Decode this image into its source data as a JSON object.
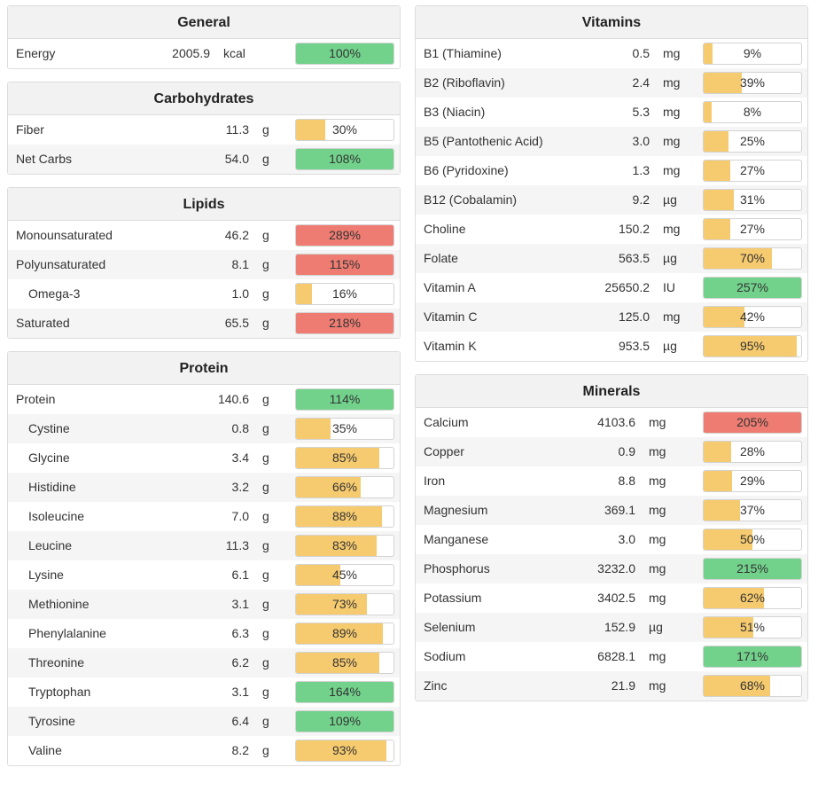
{
  "colors": {
    "green": "#72d28c",
    "yellow": "#f6ca6e",
    "red": "#ee7c72"
  },
  "left": [
    {
      "title": "General",
      "cls": "panel-general",
      "rows": [
        {
          "name": "Energy",
          "amount": "2005.9",
          "unit": "kcal",
          "pct": 100,
          "label": "100%",
          "color": "green",
          "indent": false
        }
      ]
    },
    {
      "title": "Carbohydrates",
      "cls": "",
      "rows": [
        {
          "name": "Fiber",
          "amount": "11.3",
          "unit": "g",
          "pct": 30,
          "label": "30%",
          "color": "yellow",
          "indent": false
        },
        {
          "name": "Net Carbs",
          "amount": "54.0",
          "unit": "g",
          "pct": 108,
          "label": "108%",
          "color": "green",
          "indent": false
        }
      ]
    },
    {
      "title": "Lipids",
      "cls": "",
      "rows": [
        {
          "name": "Monounsaturated",
          "amount": "46.2",
          "unit": "g",
          "pct": 289,
          "label": "289%",
          "color": "red",
          "indent": false
        },
        {
          "name": "Polyunsaturated",
          "amount": "8.1",
          "unit": "g",
          "pct": 115,
          "label": "115%",
          "color": "red",
          "indent": false
        },
        {
          "name": "Omega-3",
          "amount": "1.0",
          "unit": "g",
          "pct": 16,
          "label": "16%",
          "color": "yellow",
          "indent": true
        },
        {
          "name": "Saturated",
          "amount": "65.5",
          "unit": "g",
          "pct": 218,
          "label": "218%",
          "color": "red",
          "indent": false
        }
      ]
    },
    {
      "title": "Protein",
      "cls": "",
      "rows": [
        {
          "name": "Protein",
          "amount": "140.6",
          "unit": "g",
          "pct": 114,
          "label": "114%",
          "color": "green",
          "indent": false
        },
        {
          "name": "Cystine",
          "amount": "0.8",
          "unit": "g",
          "pct": 35,
          "label": "35%",
          "color": "yellow",
          "indent": true
        },
        {
          "name": "Glycine",
          "amount": "3.4",
          "unit": "g",
          "pct": 85,
          "label": "85%",
          "color": "yellow",
          "indent": true
        },
        {
          "name": "Histidine",
          "amount": "3.2",
          "unit": "g",
          "pct": 66,
          "label": "66%",
          "color": "yellow",
          "indent": true
        },
        {
          "name": "Isoleucine",
          "amount": "7.0",
          "unit": "g",
          "pct": 88,
          "label": "88%",
          "color": "yellow",
          "indent": true
        },
        {
          "name": "Leucine",
          "amount": "11.3",
          "unit": "g",
          "pct": 83,
          "label": "83%",
          "color": "yellow",
          "indent": true
        },
        {
          "name": "Lysine",
          "amount": "6.1",
          "unit": "g",
          "pct": 45,
          "label": "45%",
          "color": "yellow",
          "indent": true
        },
        {
          "name": "Methionine",
          "amount": "3.1",
          "unit": "g",
          "pct": 73,
          "label": "73%",
          "color": "yellow",
          "indent": true
        },
        {
          "name": "Phenylalanine",
          "amount": "6.3",
          "unit": "g",
          "pct": 89,
          "label": "89%",
          "color": "yellow",
          "indent": true
        },
        {
          "name": "Threonine",
          "amount": "6.2",
          "unit": "g",
          "pct": 85,
          "label": "85%",
          "color": "yellow",
          "indent": true
        },
        {
          "name": "Tryptophan",
          "amount": "3.1",
          "unit": "g",
          "pct": 164,
          "label": "164%",
          "color": "green",
          "indent": true
        },
        {
          "name": "Tyrosine",
          "amount": "6.4",
          "unit": "g",
          "pct": 109,
          "label": "109%",
          "color": "green",
          "indent": true
        },
        {
          "name": "Valine",
          "amount": "8.2",
          "unit": "g",
          "pct": 93,
          "label": "93%",
          "color": "yellow",
          "indent": true
        }
      ]
    }
  ],
  "right": [
    {
      "title": "Vitamins",
      "cls": "panel-vitamins",
      "rows": [
        {
          "name": "B1 (Thiamine)",
          "amount": "0.5",
          "unit": "mg",
          "pct": 9,
          "label": "9%",
          "color": "yellow",
          "indent": false
        },
        {
          "name": "B2 (Riboflavin)",
          "amount": "2.4",
          "unit": "mg",
          "pct": 39,
          "label": "39%",
          "color": "yellow",
          "indent": false
        },
        {
          "name": "B3 (Niacin)",
          "amount": "5.3",
          "unit": "mg",
          "pct": 8,
          "label": "8%",
          "color": "yellow",
          "indent": false
        },
        {
          "name": "B5 (Pantothenic Acid)",
          "amount": "3.0",
          "unit": "mg",
          "pct": 25,
          "label": "25%",
          "color": "yellow",
          "indent": false
        },
        {
          "name": "B6 (Pyridoxine)",
          "amount": "1.3",
          "unit": "mg",
          "pct": 27,
          "label": "27%",
          "color": "yellow",
          "indent": false
        },
        {
          "name": "B12 (Cobalamin)",
          "amount": "9.2",
          "unit": "µg",
          "pct": 31,
          "label": "31%",
          "color": "yellow",
          "indent": false
        },
        {
          "name": "Choline",
          "amount": "150.2",
          "unit": "mg",
          "pct": 27,
          "label": "27%",
          "color": "yellow",
          "indent": false
        },
        {
          "name": "Folate",
          "amount": "563.5",
          "unit": "µg",
          "pct": 70,
          "label": "70%",
          "color": "yellow",
          "indent": false
        },
        {
          "name": "Vitamin A",
          "amount": "25650.2",
          "unit": "IU",
          "pct": 257,
          "label": "257%",
          "color": "green",
          "indent": false
        },
        {
          "name": "Vitamin C",
          "amount": "125.0",
          "unit": "mg",
          "pct": 42,
          "label": "42%",
          "color": "yellow",
          "indent": false
        },
        {
          "name": "Vitamin K",
          "amount": "953.5",
          "unit": "µg",
          "pct": 95,
          "label": "95%",
          "color": "yellow",
          "indent": false
        }
      ]
    },
    {
      "title": "Minerals",
      "cls": "panel-minerals",
      "rows": [
        {
          "name": "Calcium",
          "amount": "4103.6",
          "unit": "mg",
          "pct": 205,
          "label": "205%",
          "color": "red",
          "indent": false
        },
        {
          "name": "Copper",
          "amount": "0.9",
          "unit": "mg",
          "pct": 28,
          "label": "28%",
          "color": "yellow",
          "indent": false
        },
        {
          "name": "Iron",
          "amount": "8.8",
          "unit": "mg",
          "pct": 29,
          "label": "29%",
          "color": "yellow",
          "indent": false
        },
        {
          "name": "Magnesium",
          "amount": "369.1",
          "unit": "mg",
          "pct": 37,
          "label": "37%",
          "color": "yellow",
          "indent": false
        },
        {
          "name": "Manganese",
          "amount": "3.0",
          "unit": "mg",
          "pct": 50,
          "label": "50%",
          "color": "yellow",
          "indent": false
        },
        {
          "name": "Phosphorus",
          "amount": "3232.0",
          "unit": "mg",
          "pct": 215,
          "label": "215%",
          "color": "green",
          "indent": false
        },
        {
          "name": "Potassium",
          "amount": "3402.5",
          "unit": "mg",
          "pct": 62,
          "label": "62%",
          "color": "yellow",
          "indent": false
        },
        {
          "name": "Selenium",
          "amount": "152.9",
          "unit": "µg",
          "pct": 51,
          "label": "51%",
          "color": "yellow",
          "indent": false
        },
        {
          "name": "Sodium",
          "amount": "6828.1",
          "unit": "mg",
          "pct": 171,
          "label": "171%",
          "color": "green",
          "indent": false
        },
        {
          "name": "Zinc",
          "amount": "21.9",
          "unit": "mg",
          "pct": 68,
          "label": "68%",
          "color": "yellow",
          "indent": false
        }
      ]
    }
  ]
}
